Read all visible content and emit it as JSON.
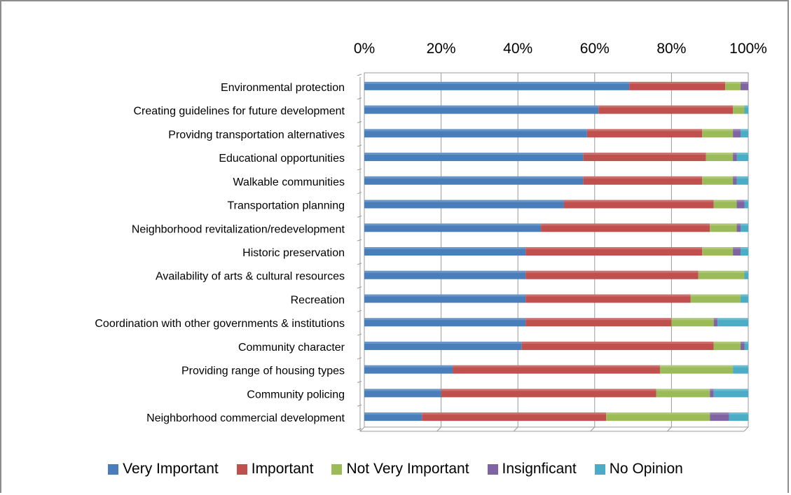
{
  "chart_data": {
    "type": "bar",
    "orientation": "horizontal",
    "stacked": "percent",
    "xlim": [
      0,
      100
    ],
    "x_ticks": [
      "0%",
      "20%",
      "40%",
      "60%",
      "80%",
      "100%"
    ],
    "x_axis_position": "top",
    "grid": true,
    "legend_position": "bottom",
    "categories": [
      "Environmental protection",
      "Creating guidelines for future development",
      "Providng transportation alternatives",
      "Educational opportunities",
      "Walkable communities",
      "Transportation planning",
      "Neighborhood revitalization/redevelopment",
      "Historic preservation",
      "Availability of arts & cultural resources",
      "Recreation",
      "Coordination with other governments & institutions",
      "Community character",
      "Providing range of housing types",
      "Community policing",
      "Neighborhood commercial development"
    ],
    "series": [
      {
        "name": "Very Important",
        "color": "#4a7ebb",
        "values": [
          69,
          61,
          58,
          57,
          57,
          52,
          46,
          42,
          42,
          42,
          42,
          41,
          23,
          20,
          15
        ]
      },
      {
        "name": "Important",
        "color": "#c0504d",
        "values": [
          25,
          35,
          30,
          32,
          31,
          39,
          44,
          46,
          45,
          43,
          38,
          50,
          54,
          56,
          48
        ]
      },
      {
        "name": "Not Very Important",
        "color": "#9bbb59",
        "values": [
          4,
          3,
          8,
          7,
          8,
          6,
          7,
          8,
          12,
          13,
          11,
          7,
          19,
          14,
          27
        ]
      },
      {
        "name": "Insignficant",
        "color": "#8064a2",
        "values": [
          2,
          0,
          2,
          1,
          1,
          2,
          1,
          2,
          0,
          0,
          1,
          1,
          0,
          1,
          5
        ]
      },
      {
        "name": "No Opinion",
        "color": "#4bacc6",
        "values": [
          0,
          1,
          2,
          3,
          3,
          1,
          2,
          2,
          1,
          2,
          8,
          1,
          4,
          9,
          5
        ]
      }
    ]
  }
}
